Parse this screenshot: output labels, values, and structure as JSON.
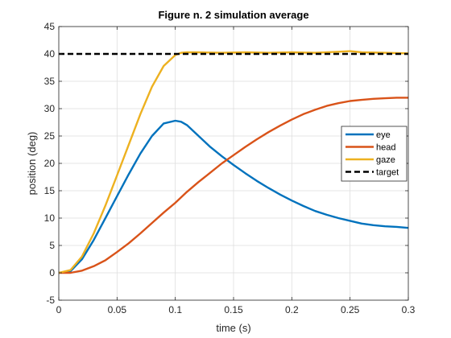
{
  "chart_data": {
    "type": "line",
    "title": "Figure n. 2 simulation average",
    "xlabel": "time (s)",
    "ylabel": "position (deg)",
    "xlim": [
      0,
      0.3
    ],
    "ylim": [
      -5,
      45
    ],
    "xticks": [
      0,
      0.05,
      0.1,
      0.15,
      0.2,
      0.25,
      0.3
    ],
    "xtick_labels": [
      "0",
      "0.05",
      "0.1",
      "0.15",
      "0.2",
      "0.25",
      "0.3"
    ],
    "yticks": [
      -5,
      0,
      5,
      10,
      15,
      20,
      25,
      30,
      35,
      40,
      45
    ],
    "ytick_labels": [
      "-5",
      "0",
      "5",
      "10",
      "15",
      "20",
      "25",
      "30",
      "35",
      "40",
      "45"
    ],
    "grid": true,
    "legend_position": "right",
    "series": [
      {
        "name": "eye",
        "color": "#0072BD",
        "dash": "solid",
        "x": [
          0,
          0.01,
          0.02,
          0.03,
          0.04,
          0.05,
          0.06,
          0.07,
          0.08,
          0.09,
          0.1,
          0.105,
          0.11,
          0.12,
          0.13,
          0.14,
          0.15,
          0.16,
          0.17,
          0.18,
          0.19,
          0.2,
          0.21,
          0.22,
          0.23,
          0.24,
          0.25,
          0.26,
          0.27,
          0.28,
          0.29,
          0.3
        ],
        "values": [
          0,
          0.3,
          2.5,
          6,
          10,
          14,
          18,
          21.8,
          25,
          27.3,
          27.8,
          27.6,
          27,
          25,
          23,
          21.3,
          19.7,
          18.2,
          16.8,
          15.5,
          14.3,
          13.2,
          12.2,
          11.3,
          10.6,
          10,
          9.5,
          9,
          8.7,
          8.5,
          8.4,
          8.2
        ]
      },
      {
        "name": "head",
        "color": "#D95319",
        "dash": "solid",
        "x": [
          0,
          0.01,
          0.02,
          0.03,
          0.04,
          0.05,
          0.06,
          0.07,
          0.08,
          0.09,
          0.1,
          0.11,
          0.12,
          0.13,
          0.14,
          0.15,
          0.16,
          0.17,
          0.18,
          0.19,
          0.2,
          0.21,
          0.22,
          0.23,
          0.24,
          0.25,
          0.26,
          0.27,
          0.28,
          0.29,
          0.3
        ],
        "values": [
          0,
          0,
          0.4,
          1.2,
          2.3,
          3.8,
          5.4,
          7.2,
          9.1,
          11,
          12.8,
          14.8,
          16.6,
          18.3,
          20,
          21.5,
          23,
          24.4,
          25.7,
          26.9,
          28,
          29,
          29.8,
          30.5,
          31,
          31.4,
          31.6,
          31.8,
          31.9,
          32,
          32
        ]
      },
      {
        "name": "gaze",
        "color": "#EDB120",
        "dash": "solid",
        "x": [
          0,
          0.01,
          0.02,
          0.03,
          0.04,
          0.05,
          0.06,
          0.07,
          0.08,
          0.09,
          0.1,
          0.105,
          0.11,
          0.12,
          0.14,
          0.16,
          0.18,
          0.2,
          0.22,
          0.24,
          0.25,
          0.26,
          0.28,
          0.3
        ],
        "values": [
          0,
          0.5,
          3,
          7.2,
          12.3,
          17.8,
          23.4,
          29,
          34,
          37.8,
          39.8,
          40.2,
          40.3,
          40.3,
          40.2,
          40.3,
          40.2,
          40.3,
          40.2,
          40.4,
          40.5,
          40.3,
          40.2,
          40.1
        ]
      },
      {
        "name": "target",
        "color": "#000000",
        "dash": "dashed",
        "x": [
          0,
          0.3
        ],
        "values": [
          40,
          40
        ]
      }
    ]
  }
}
